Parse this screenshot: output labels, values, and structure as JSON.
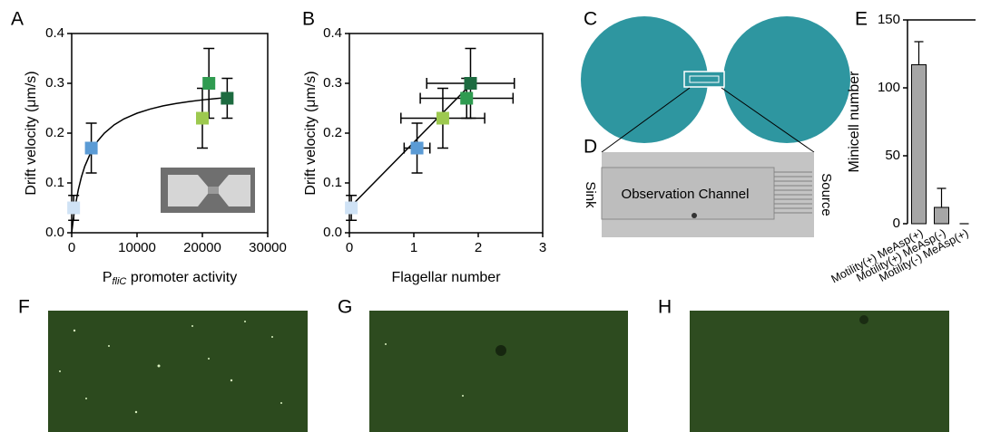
{
  "chart_data": [
    {
      "type": "scatter",
      "panel": "A",
      "y_label": "Drift velocity (μm/s)",
      "x_label_main": "P",
      "x_label_sub": "fliC",
      "x_label_rest": " promoter activity",
      "xlim": [
        0,
        30000
      ],
      "xticks": [
        0,
        10000,
        20000,
        30000
      ],
      "ylim": [
        0,
        0.4
      ],
      "yticks": [
        {
          "value": 0,
          "label": "0.0"
        },
        0.1,
        0.2,
        0.3,
        0.4
      ],
      "x": [
        300,
        3000,
        20000,
        21000,
        23800
      ],
      "values": [
        0.05,
        0.17,
        0.23,
        0.3,
        0.27
      ],
      "yerr": [
        0.025,
        0.05,
        0.06,
        0.07,
        0.04
      ],
      "colors": [
        "#cfe2f5",
        "#5b9bd5",
        "#9dc94f",
        "#2f9b50",
        "#1d6b40"
      ],
      "fit": {
        "x": [
          0,
          250,
          500,
          1000,
          1500,
          2000,
          3000,
          4000,
          5000,
          6500,
          8000,
          10000,
          12000,
          14000,
          16000,
          18000,
          20000,
          22000,
          24000
        ],
        "values": [
          0,
          0.0273,
          0.05,
          0.0857,
          0.1125,
          0.1333,
          0.1636,
          0.1846,
          0.2,
          0.2167,
          0.2286,
          0.24,
          0.2483,
          0.2547,
          0.2595,
          0.2634,
          0.2667,
          0.2694,
          0.2717
        ]
      }
    },
    {
      "type": "scatter",
      "panel": "B",
      "y_label": "Drift velocity (μm/s)",
      "x_label": "Flagellar number",
      "xlim": [
        0,
        3
      ],
      "xticks": [
        0,
        1,
        2,
        3
      ],
      "ylim": [
        0,
        0.4
      ],
      "yticks": [
        {
          "value": 0,
          "label": "0.0"
        },
        0.1,
        0.2,
        0.3,
        0.4
      ],
      "x": [
        0.03,
        1.05,
        1.45,
        1.82,
        1.88
      ],
      "values": [
        0.05,
        0.17,
        0.23,
        0.27,
        0.3
      ],
      "yerr": [
        0.025,
        0.05,
        0.06,
        0.04,
        0.07
      ],
      "xerr": [
        0,
        0.2,
        0.65,
        0.72,
        0.68
      ],
      "colors": [
        "#cfe2f5",
        "#5b9bd5",
        "#9dc94f",
        "#2f9b50",
        "#1d6b40"
      ],
      "fit": {
        "x": [
          0,
          1.9
        ],
        "values": [
          0.05,
          0.3
        ]
      }
    },
    {
      "type": "bar",
      "panel": "E",
      "y_label": "Minicell number",
      "categories": [
        "Motility(+) MeAsp(+)",
        "Motility(+) MeAsp(-)",
        "Motility(-) MeAsp(+)"
      ],
      "values": [
        117,
        12,
        0
      ],
      "yerr": [
        17,
        14,
        0
      ],
      "color": "#a6a6a6",
      "ylim": [
        0,
        150
      ],
      "yticks": [
        0,
        50,
        100,
        150
      ]
    }
  ],
  "diagram": {
    "label_c": "C",
    "label_d": "D",
    "sink": "Sink",
    "channel": "Observation Channel",
    "source": "Source"
  },
  "images": [
    {
      "label": "F"
    },
    {
      "label": "G"
    },
    {
      "label": "H"
    }
  ]
}
